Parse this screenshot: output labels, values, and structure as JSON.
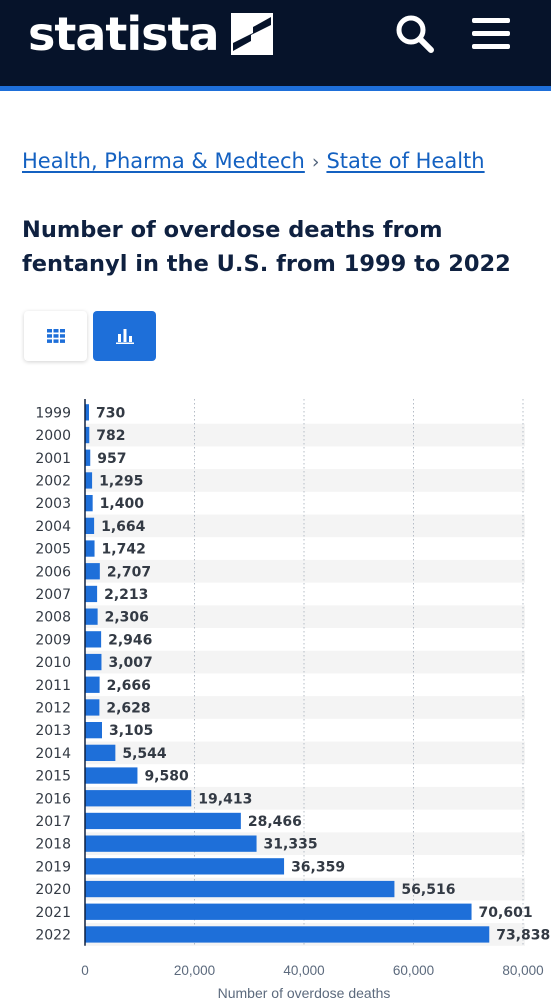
{
  "header": {
    "logo_text": "statista",
    "background_color": "#06132a",
    "accent_color": "#1e6fd9",
    "search_icon": "search-icon",
    "menu_icon": "hamburger-menu-icon"
  },
  "breadcrumb": {
    "items": [
      {
        "label": "Health, Pharma & Medtech"
      },
      {
        "label": "State of Health"
      }
    ],
    "separator": "›"
  },
  "page_title": "Number of overdose deaths from fentanyl in the U.S. from 1999 to 2022",
  "view_toggle": {
    "options": [
      "table-grid-icon",
      "bar-chart-icon"
    ],
    "selected": "bar-chart-icon"
  },
  "chart_data": {
    "type": "bar",
    "orientation": "horizontal",
    "categories": [
      "1999",
      "2000",
      "2001",
      "2002",
      "2003",
      "2004",
      "2005",
      "2006",
      "2007",
      "2008",
      "2009",
      "2010",
      "2011",
      "2012",
      "2013",
      "2014",
      "2015",
      "2016",
      "2017",
      "2018",
      "2019",
      "2020",
      "2021",
      "2022"
    ],
    "values": [
      730,
      782,
      957,
      1295,
      1400,
      1664,
      1742,
      2707,
      2213,
      2306,
      2946,
      3007,
      2666,
      2628,
      3105,
      5544,
      9580,
      19413,
      28466,
      31335,
      36359,
      56516,
      70601,
      73838
    ],
    "value_labels": [
      "730",
      "782",
      "957",
      "1,295",
      "1,400",
      "1,664",
      "1,742",
      "2,707",
      "2,213",
      "2,306",
      "2,946",
      "3,007",
      "2,666",
      "2,628",
      "3,105",
      "5,544",
      "9,580",
      "19,413",
      "28,466",
      "31,335",
      "36,359",
      "56,516",
      "70,601",
      "73,838"
    ],
    "xlabel": "Number of overdose deaths",
    "ylabel": "",
    "xlim": [
      0,
      80000
    ],
    "ticks": [
      0,
      20000,
      40000,
      60000,
      80000
    ],
    "tick_labels": [
      "0",
      "20,000",
      "40,000",
      "60,000",
      "80,000"
    ],
    "grid": true,
    "bar_color": "#1e6fd9",
    "stripe_color": "#f4f4f4"
  }
}
